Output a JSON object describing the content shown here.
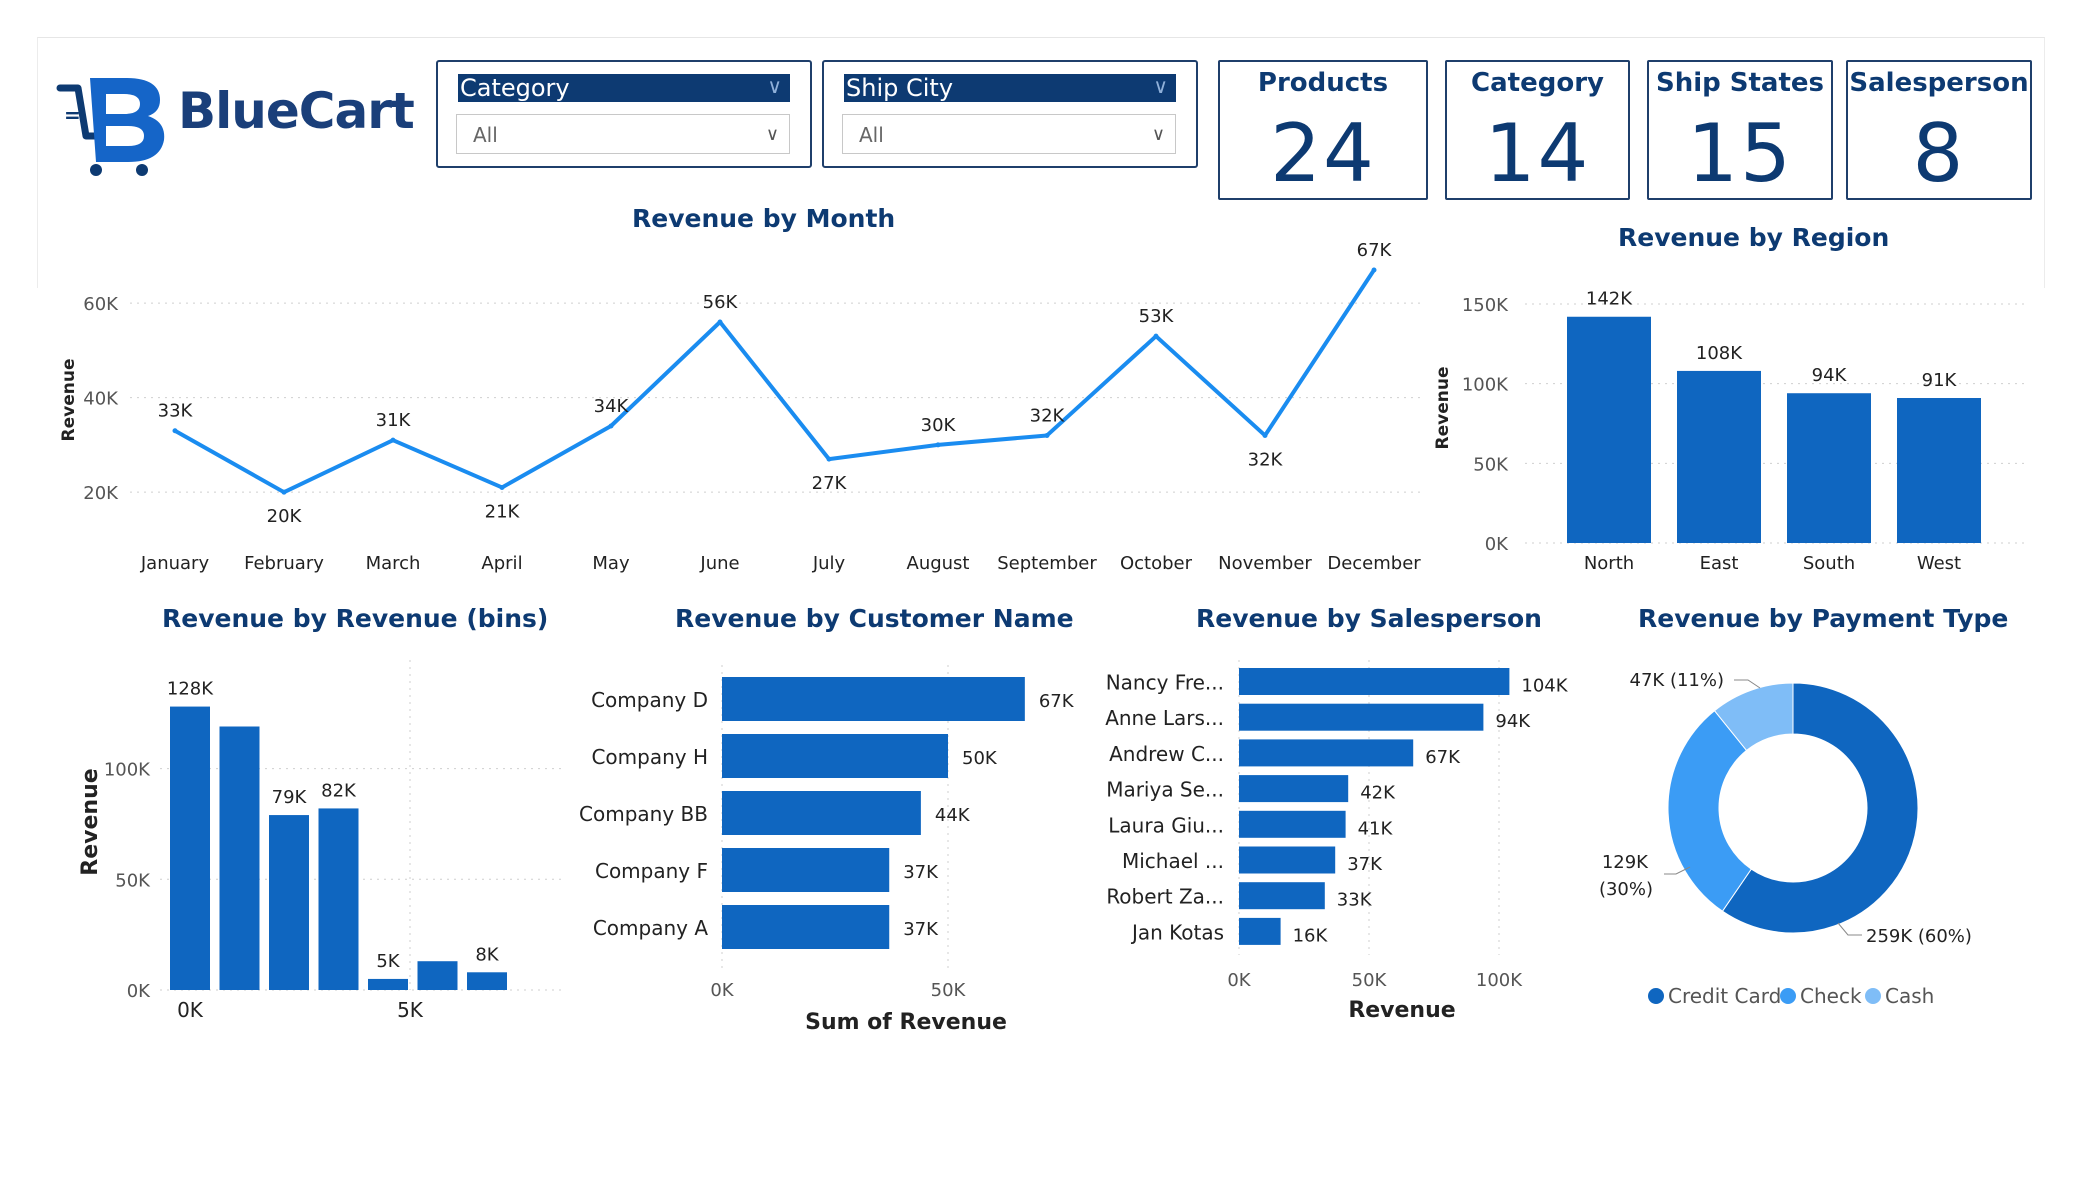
{
  "brand": {
    "name_prefix": "Blue",
    "name_suffix": "Cart",
    "logo_letter": "B"
  },
  "slicers": [
    {
      "title": "Category",
      "value": "All"
    },
    {
      "title": "Ship City",
      "value": "All"
    }
  ],
  "kpis": [
    {
      "label": "Products",
      "value": "24"
    },
    {
      "label": "Category",
      "value": "14"
    },
    {
      "label": "Ship States",
      "value": "15"
    },
    {
      "label": "Salesperson",
      "value": "8"
    }
  ],
  "colors": {
    "primary": "#0f66c0",
    "line": "#1a8cf0",
    "dark": "#0d3a72",
    "check": "#3b9cf5",
    "cash": "#7fbdf7"
  },
  "chart_data": [
    {
      "id": "month",
      "type": "line",
      "title": "Revenue by Month",
      "ylabel": "Revenue",
      "categories": [
        "January",
        "February",
        "March",
        "April",
        "May",
        "June",
        "July",
        "August",
        "September",
        "October",
        "November",
        "December"
      ],
      "values": [
        33,
        20,
        31,
        21,
        34,
        56,
        27,
        30,
        32,
        53,
        32,
        67
      ],
      "labels": [
        "33K",
        "20K",
        "31K",
        "21K",
        "34K",
        "56K",
        "27K",
        "30K",
        "32K",
        "53K",
        "32K",
        "67K"
      ],
      "yticks": [
        "20K",
        "40K",
        "60K"
      ],
      "ytick_values": [
        20,
        40,
        60
      ],
      "ylim": [
        12,
        67
      ]
    },
    {
      "id": "region",
      "type": "bar",
      "title": "Revenue by Region",
      "ylabel": "Revenue",
      "categories": [
        "North",
        "East",
        "South",
        "West"
      ],
      "values": [
        142,
        108,
        94,
        91
      ],
      "labels": [
        "142K",
        "108K",
        "94K",
        "91K"
      ],
      "yticks": [
        "0K",
        "50K",
        "100K",
        "150K"
      ],
      "ytick_values": [
        0,
        50,
        100,
        150
      ],
      "ylim": [
        0,
        150
      ]
    },
    {
      "id": "bins",
      "type": "bar",
      "title": "Revenue by Revenue (bins)",
      "ylabel": "Revenue",
      "values": [
        128,
        119,
        79,
        82,
        5,
        13,
        8
      ],
      "labels": [
        "128K",
        "",
        "79K",
        "82K",
        "5K",
        "",
        "8K"
      ],
      "xticks": [
        "0K",
        "5K"
      ],
      "yticks": [
        "0K",
        "50K",
        "100K"
      ],
      "ytick_values": [
        0,
        50,
        100
      ],
      "ylim": [
        0,
        140
      ]
    },
    {
      "id": "customer",
      "type": "hbar",
      "title": "Revenue by Customer Name",
      "xlabel": "Sum of Revenue",
      "categories": [
        "Company D",
        "Company H",
        "Company BB",
        "Company F",
        "Company A"
      ],
      "values": [
        67,
        50,
        44,
        37,
        37
      ],
      "labels": [
        "67K",
        "50K",
        "44K",
        "37K",
        "37K"
      ],
      "xticks": [
        "0K",
        "50K"
      ],
      "xtick_values": [
        0,
        50
      ],
      "xlim": [
        0,
        70
      ]
    },
    {
      "id": "salesperson",
      "type": "hbar",
      "title": "Revenue by Salesperson",
      "xlabel": "Revenue",
      "categories": [
        "Nancy Fre...",
        "Anne Lars...",
        "Andrew C...",
        "Mariya Se...",
        "Laura Giu...",
        "Michael ...",
        "Robert Za...",
        "Jan Kotas"
      ],
      "values": [
        104,
        94,
        67,
        42,
        41,
        37,
        33,
        16
      ],
      "labels": [
        "104K",
        "94K",
        "67K",
        "42K",
        "41K",
        "37K",
        "33K",
        "16K"
      ],
      "xticks": [
        "0K",
        "50K",
        "100K"
      ],
      "xtick_values": [
        0,
        50,
        100
      ],
      "xlim": [
        0,
        110
      ]
    },
    {
      "id": "payment",
      "type": "pie",
      "title": "Revenue by Payment Type",
      "categories": [
        "Credit Card",
        "Check",
        "Cash"
      ],
      "values": [
        259,
        129,
        47
      ],
      "labels": [
        "259K (60%)",
        "129K",
        "47K (11%)"
      ],
      "label_extra": [
        "",
        "(30%)",
        ""
      ]
    }
  ]
}
